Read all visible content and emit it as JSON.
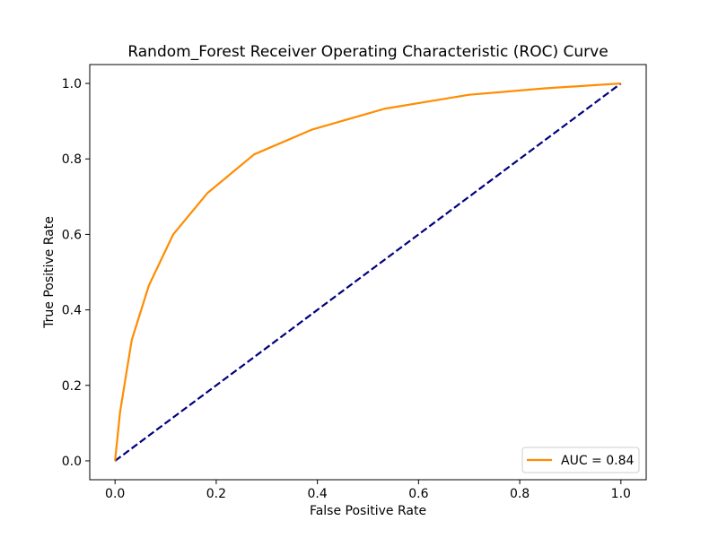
{
  "chart_data": {
    "type": "line",
    "title": "Random_Forest Receiver Operating Characteristic (ROC) Curve",
    "xlabel": "False Positive Rate",
    "ylabel": "True Positive Rate",
    "xlim": [
      -0.05,
      1.05
    ],
    "ylim": [
      -0.05,
      1.05
    ],
    "xticks": [
      0.0,
      0.2,
      0.4,
      0.6,
      0.8,
      1.0
    ],
    "yticks": [
      0.0,
      0.2,
      0.4,
      0.6,
      0.8,
      1.0
    ],
    "xtick_labels": [
      "0.0",
      "0.2",
      "0.4",
      "0.6",
      "0.8",
      "1.0"
    ],
    "ytick_labels": [
      "0.0",
      "0.2",
      "0.4",
      "0.6",
      "0.8",
      "1.0"
    ],
    "grid": false,
    "legend_position": "lower-right",
    "series": [
      {
        "name": "AUC = 0.84",
        "color": "#ff8c00",
        "style": "solid",
        "x": [
          0.0,
          0.01,
          0.033,
          0.067,
          0.115,
          0.183,
          0.275,
          0.39,
          0.533,
          0.7,
          0.85,
          1.0
        ],
        "y": [
          0.0,
          0.13,
          0.32,
          0.465,
          0.6,
          0.71,
          0.812,
          0.878,
          0.933,
          0.97,
          0.987,
          1.0
        ]
      },
      {
        "name": "",
        "color": "#000080",
        "style": "dashed",
        "x": [
          0.0,
          1.0
        ],
        "y": [
          0.0,
          1.0
        ]
      }
    ]
  }
}
